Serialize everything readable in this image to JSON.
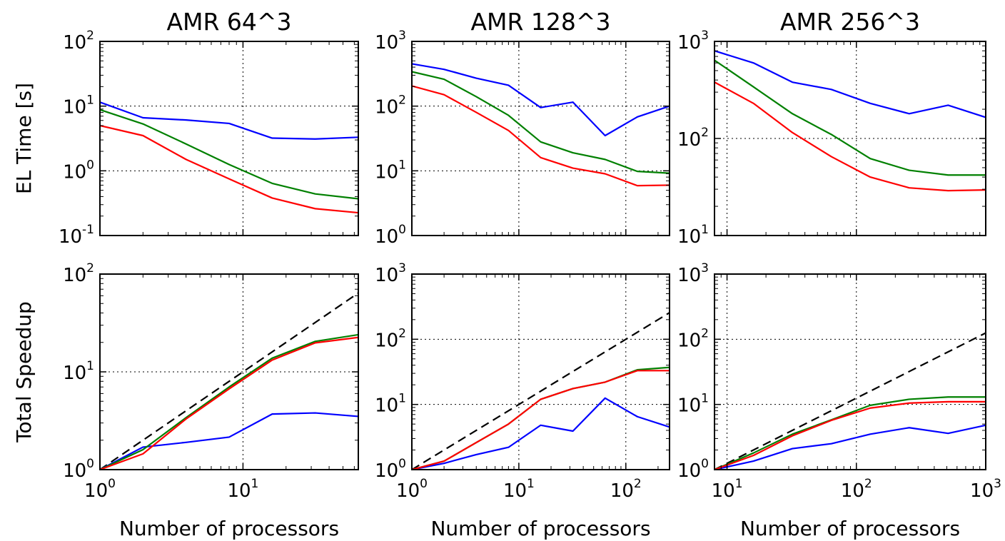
{
  "chart_data": [
    {
      "type": "line",
      "panel": "time",
      "col": 0,
      "title": "AMR 64^3",
      "xlabel": "",
      "ylabel": "EL Time [s]",
      "xscale": "log",
      "yscale": "log",
      "xlim": [
        1,
        64
      ],
      "ylim": [
        0.1,
        100
      ],
      "x_ticks": [
        {
          "base": "10",
          "exp": "0",
          "value": 1
        },
        {
          "base": "10",
          "exp": "1",
          "value": 10
        }
      ],
      "y_ticks": [
        {
          "base": "10",
          "exp": "-1",
          "value": 0.1
        },
        {
          "base": "10",
          "exp": "0",
          "value": 1
        },
        {
          "base": "10",
          "exp": "1",
          "value": 10
        },
        {
          "base": "10",
          "exp": "2",
          "value": 100
        }
      ],
      "grid": true,
      "series": [
        {
          "color": "#0000ff",
          "x": [
            1,
            2,
            4,
            8,
            16,
            32,
            64
          ],
          "y": [
            11.5,
            6.6,
            6.1,
            5.4,
            3.2,
            3.1,
            3.3
          ]
        },
        {
          "color": "#008000",
          "x": [
            1,
            2,
            4,
            8,
            16,
            32,
            64
          ],
          "y": [
            8.8,
            5.3,
            2.6,
            1.25,
            0.64,
            0.44,
            0.37
          ]
        },
        {
          "color": "#ff0000",
          "x": [
            1,
            2,
            4,
            8,
            16,
            32,
            64
          ],
          "y": [
            5.0,
            3.5,
            1.5,
            0.75,
            0.38,
            0.26,
            0.225
          ]
        }
      ]
    },
    {
      "type": "line",
      "panel": "time",
      "col": 1,
      "title": "AMR 128^3",
      "xlabel": "",
      "ylabel": "",
      "xscale": "log",
      "yscale": "log",
      "xlim": [
        1,
        256
      ],
      "ylim": [
        1,
        1000
      ],
      "x_ticks": [
        {
          "base": "10",
          "exp": "0",
          "value": 1
        },
        {
          "base": "10",
          "exp": "1",
          "value": 10
        },
        {
          "base": "10",
          "exp": "2",
          "value": 100
        }
      ],
      "y_ticks": [
        {
          "base": "10",
          "exp": "0",
          "value": 1
        },
        {
          "base": "10",
          "exp": "1",
          "value": 10
        },
        {
          "base": "10",
          "exp": "2",
          "value": 100
        },
        {
          "base": "10",
          "exp": "3",
          "value": 1000
        }
      ],
      "grid": true,
      "series": [
        {
          "color": "#0000ff",
          "x": [
            1,
            2,
            4,
            8,
            16,
            32,
            64,
            128,
            256
          ],
          "y": [
            450,
            370,
            270,
            210,
            95,
            115,
            35,
            68,
            100
          ]
        },
        {
          "color": "#008000",
          "x": [
            1,
            2,
            4,
            8,
            16,
            32,
            64,
            128,
            256
          ],
          "y": [
            340,
            260,
            140,
            72,
            28,
            19,
            15,
            9.8,
            9.2
          ]
        },
        {
          "color": "#ff0000",
          "x": [
            1,
            2,
            4,
            8,
            16,
            32,
            64,
            128,
            256
          ],
          "y": [
            205,
            150,
            80,
            42,
            16,
            11,
            9,
            5.9,
            6.0
          ]
        }
      ]
    },
    {
      "type": "line",
      "panel": "time",
      "col": 2,
      "title": "AMR 256^3",
      "xlabel": "",
      "ylabel": "",
      "xscale": "log",
      "yscale": "log",
      "xlim": [
        8,
        1000
      ],
      "ylim": [
        10,
        1000
      ],
      "x_ticks": [
        {
          "base": "10",
          "exp": "1",
          "value": 10
        },
        {
          "base": "10",
          "exp": "2",
          "value": 100
        },
        {
          "base": "10",
          "exp": "3",
          "value": 1000
        }
      ],
      "y_ticks": [
        {
          "base": "10",
          "exp": "1",
          "value": 10
        },
        {
          "base": "10",
          "exp": "2",
          "value": 100
        },
        {
          "base": "10",
          "exp": "3",
          "value": 1000
        }
      ],
      "grid": true,
      "series": [
        {
          "color": "#0000ff",
          "x": [
            8,
            16,
            32,
            64,
            128,
            256,
            512,
            1000
          ],
          "y": [
            800,
            600,
            380,
            320,
            230,
            180,
            220,
            165
          ]
        },
        {
          "color": "#008000",
          "x": [
            8,
            16,
            32,
            64,
            128,
            256,
            512,
            1000
          ],
          "y": [
            640,
            340,
            180,
            110,
            62,
            47,
            42,
            42
          ]
        },
        {
          "color": "#ff0000",
          "x": [
            8,
            16,
            32,
            64,
            128,
            256,
            512,
            1000
          ],
          "y": [
            380,
            230,
            115,
            65,
            40,
            31,
            29,
            29.5
          ]
        }
      ]
    },
    {
      "type": "line",
      "panel": "speedup",
      "col": 0,
      "title": "",
      "xlabel": "Number of processors",
      "ylabel": "Total Speedup",
      "xscale": "log",
      "yscale": "log",
      "xlim": [
        1,
        64
      ],
      "ylim": [
        1,
        100
      ],
      "x_ticks": [
        {
          "base": "10",
          "exp": "0",
          "value": 1
        },
        {
          "base": "10",
          "exp": "1",
          "value": 10
        }
      ],
      "y_ticks": [
        {
          "base": "10",
          "exp": "0",
          "value": 1
        },
        {
          "base": "10",
          "exp": "1",
          "value": 10
        },
        {
          "base": "10",
          "exp": "2",
          "value": 100
        }
      ],
      "grid": true,
      "ideal": {
        "color": "#000000",
        "x": [
          1,
          64
        ],
        "y": [
          1,
          64
        ]
      },
      "series": [
        {
          "color": "#0000ff",
          "x": [
            1,
            2,
            4,
            8,
            16,
            32,
            64
          ],
          "y": [
            1,
            1.7,
            1.9,
            2.15,
            3.7,
            3.8,
            3.5
          ]
        },
        {
          "color": "#008000",
          "x": [
            1,
            2,
            4,
            8,
            16,
            32,
            64
          ],
          "y": [
            1,
            1.6,
            3.4,
            7.0,
            13.8,
            20.5,
            24
          ]
        },
        {
          "color": "#ff0000",
          "x": [
            1,
            2,
            4,
            8,
            16,
            32,
            64
          ],
          "y": [
            1,
            1.45,
            3.3,
            6.7,
            13.2,
            19.8,
            22.5
          ]
        }
      ]
    },
    {
      "type": "line",
      "panel": "speedup",
      "col": 1,
      "title": "",
      "xlabel": "Number of processors",
      "ylabel": "",
      "xscale": "log",
      "yscale": "log",
      "xlim": [
        1,
        256
      ],
      "ylim": [
        1,
        1000
      ],
      "x_ticks": [
        {
          "base": "10",
          "exp": "0",
          "value": 1
        },
        {
          "base": "10",
          "exp": "1",
          "value": 10
        },
        {
          "base": "10",
          "exp": "2",
          "value": 100
        }
      ],
      "y_ticks": [
        {
          "base": "10",
          "exp": "0",
          "value": 1
        },
        {
          "base": "10",
          "exp": "1",
          "value": 10
        },
        {
          "base": "10",
          "exp": "2",
          "value": 100
        },
        {
          "base": "10",
          "exp": "3",
          "value": 1000
        }
      ],
      "grid": true,
      "ideal": {
        "color": "#000000",
        "x": [
          1,
          256
        ],
        "y": [
          1,
          256
        ]
      },
      "series": [
        {
          "color": "#0000ff",
          "x": [
            1,
            2,
            4,
            8,
            16,
            32,
            64,
            128,
            256
          ],
          "y": [
            1,
            1.25,
            1.7,
            2.2,
            4.8,
            3.9,
            12.5,
            6.5,
            4.5
          ]
        },
        {
          "color": "#008000",
          "x": [
            1,
            2,
            4,
            8,
            16,
            32,
            64,
            128,
            256
          ],
          "y": [
            1,
            1.35,
            2.6,
            5.0,
            12,
            17.5,
            22,
            34,
            37
          ]
        },
        {
          "color": "#ff0000",
          "x": [
            1,
            2,
            4,
            8,
            16,
            32,
            64,
            128,
            256
          ],
          "y": [
            1,
            1.35,
            2.6,
            5.0,
            12,
            17.5,
            22,
            33,
            33
          ]
        }
      ]
    },
    {
      "type": "line",
      "panel": "speedup",
      "col": 2,
      "title": "",
      "xlabel": "Number of processors",
      "ylabel": "",
      "xscale": "log",
      "yscale": "log",
      "xlim": [
        8,
        1000
      ],
      "ylim": [
        1,
        1000
      ],
      "x_ticks": [
        {
          "base": "10",
          "exp": "1",
          "value": 10
        },
        {
          "base": "10",
          "exp": "2",
          "value": 100
        },
        {
          "base": "10",
          "exp": "3",
          "value": 1000
        }
      ],
      "y_ticks": [
        {
          "base": "10",
          "exp": "0",
          "value": 1
        },
        {
          "base": "10",
          "exp": "1",
          "value": 10
        },
        {
          "base": "10",
          "exp": "2",
          "value": 100
        },
        {
          "base": "10",
          "exp": "3",
          "value": 1000
        }
      ],
      "grid": true,
      "ideal": {
        "color": "#000000",
        "x": [
          8,
          1000
        ],
        "y": [
          1,
          125
        ]
      },
      "series": [
        {
          "color": "#0000ff",
          "x": [
            8,
            16,
            32,
            64,
            128,
            256,
            512,
            1000
          ],
          "y": [
            1,
            1.35,
            2.1,
            2.5,
            3.5,
            4.4,
            3.6,
            4.8
          ]
        },
        {
          "color": "#008000",
          "x": [
            8,
            16,
            32,
            64,
            128,
            256,
            512,
            1000
          ],
          "y": [
            1,
            1.8,
            3.5,
            5.8,
            9.7,
            12,
            13,
            13
          ]
        },
        {
          "color": "#ff0000",
          "x": [
            8,
            16,
            32,
            64,
            128,
            256,
            512,
            1000
          ],
          "y": [
            1,
            1.65,
            3.3,
            5.7,
            8.8,
            10.5,
            11,
            11
          ]
        }
      ]
    }
  ]
}
